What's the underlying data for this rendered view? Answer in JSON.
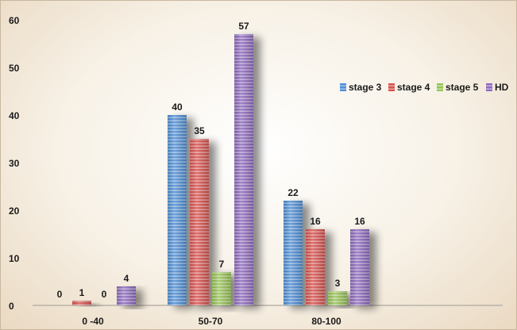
{
  "chart_data": {
    "type": "bar",
    "title": "",
    "xlabel": "",
    "ylabel": "",
    "categories": [
      "0 -40",
      "50-70",
      "80-100"
    ],
    "series": [
      {
        "name": "stage 3",
        "values": [
          0,
          40,
          22
        ],
        "color": "#4f8fd6"
      },
      {
        "name": "stage 4",
        "values": [
          1,
          35,
          16
        ],
        "color": "#d9534f"
      },
      {
        "name": "stage 5",
        "values": [
          0,
          7,
          3
        ],
        "color": "#98c455"
      },
      {
        "name": "HD",
        "values": [
          4,
          57,
          16
        ],
        "color": "#8f6bbf"
      }
    ],
    "ylim": [
      0,
      60
    ],
    "yticks": [
      "0",
      "10",
      "20",
      "30",
      "40",
      "50",
      "60"
    ],
    "data_labels": [
      [
        "0",
        "40",
        "22"
      ],
      [
        "1",
        "35",
        "16"
      ],
      [
        "0",
        "7",
        "3"
      ],
      [
        "4",
        "57",
        "16"
      ]
    ],
    "grid": false,
    "legend_position": "right",
    "bar_style": "horizontal-striped"
  }
}
